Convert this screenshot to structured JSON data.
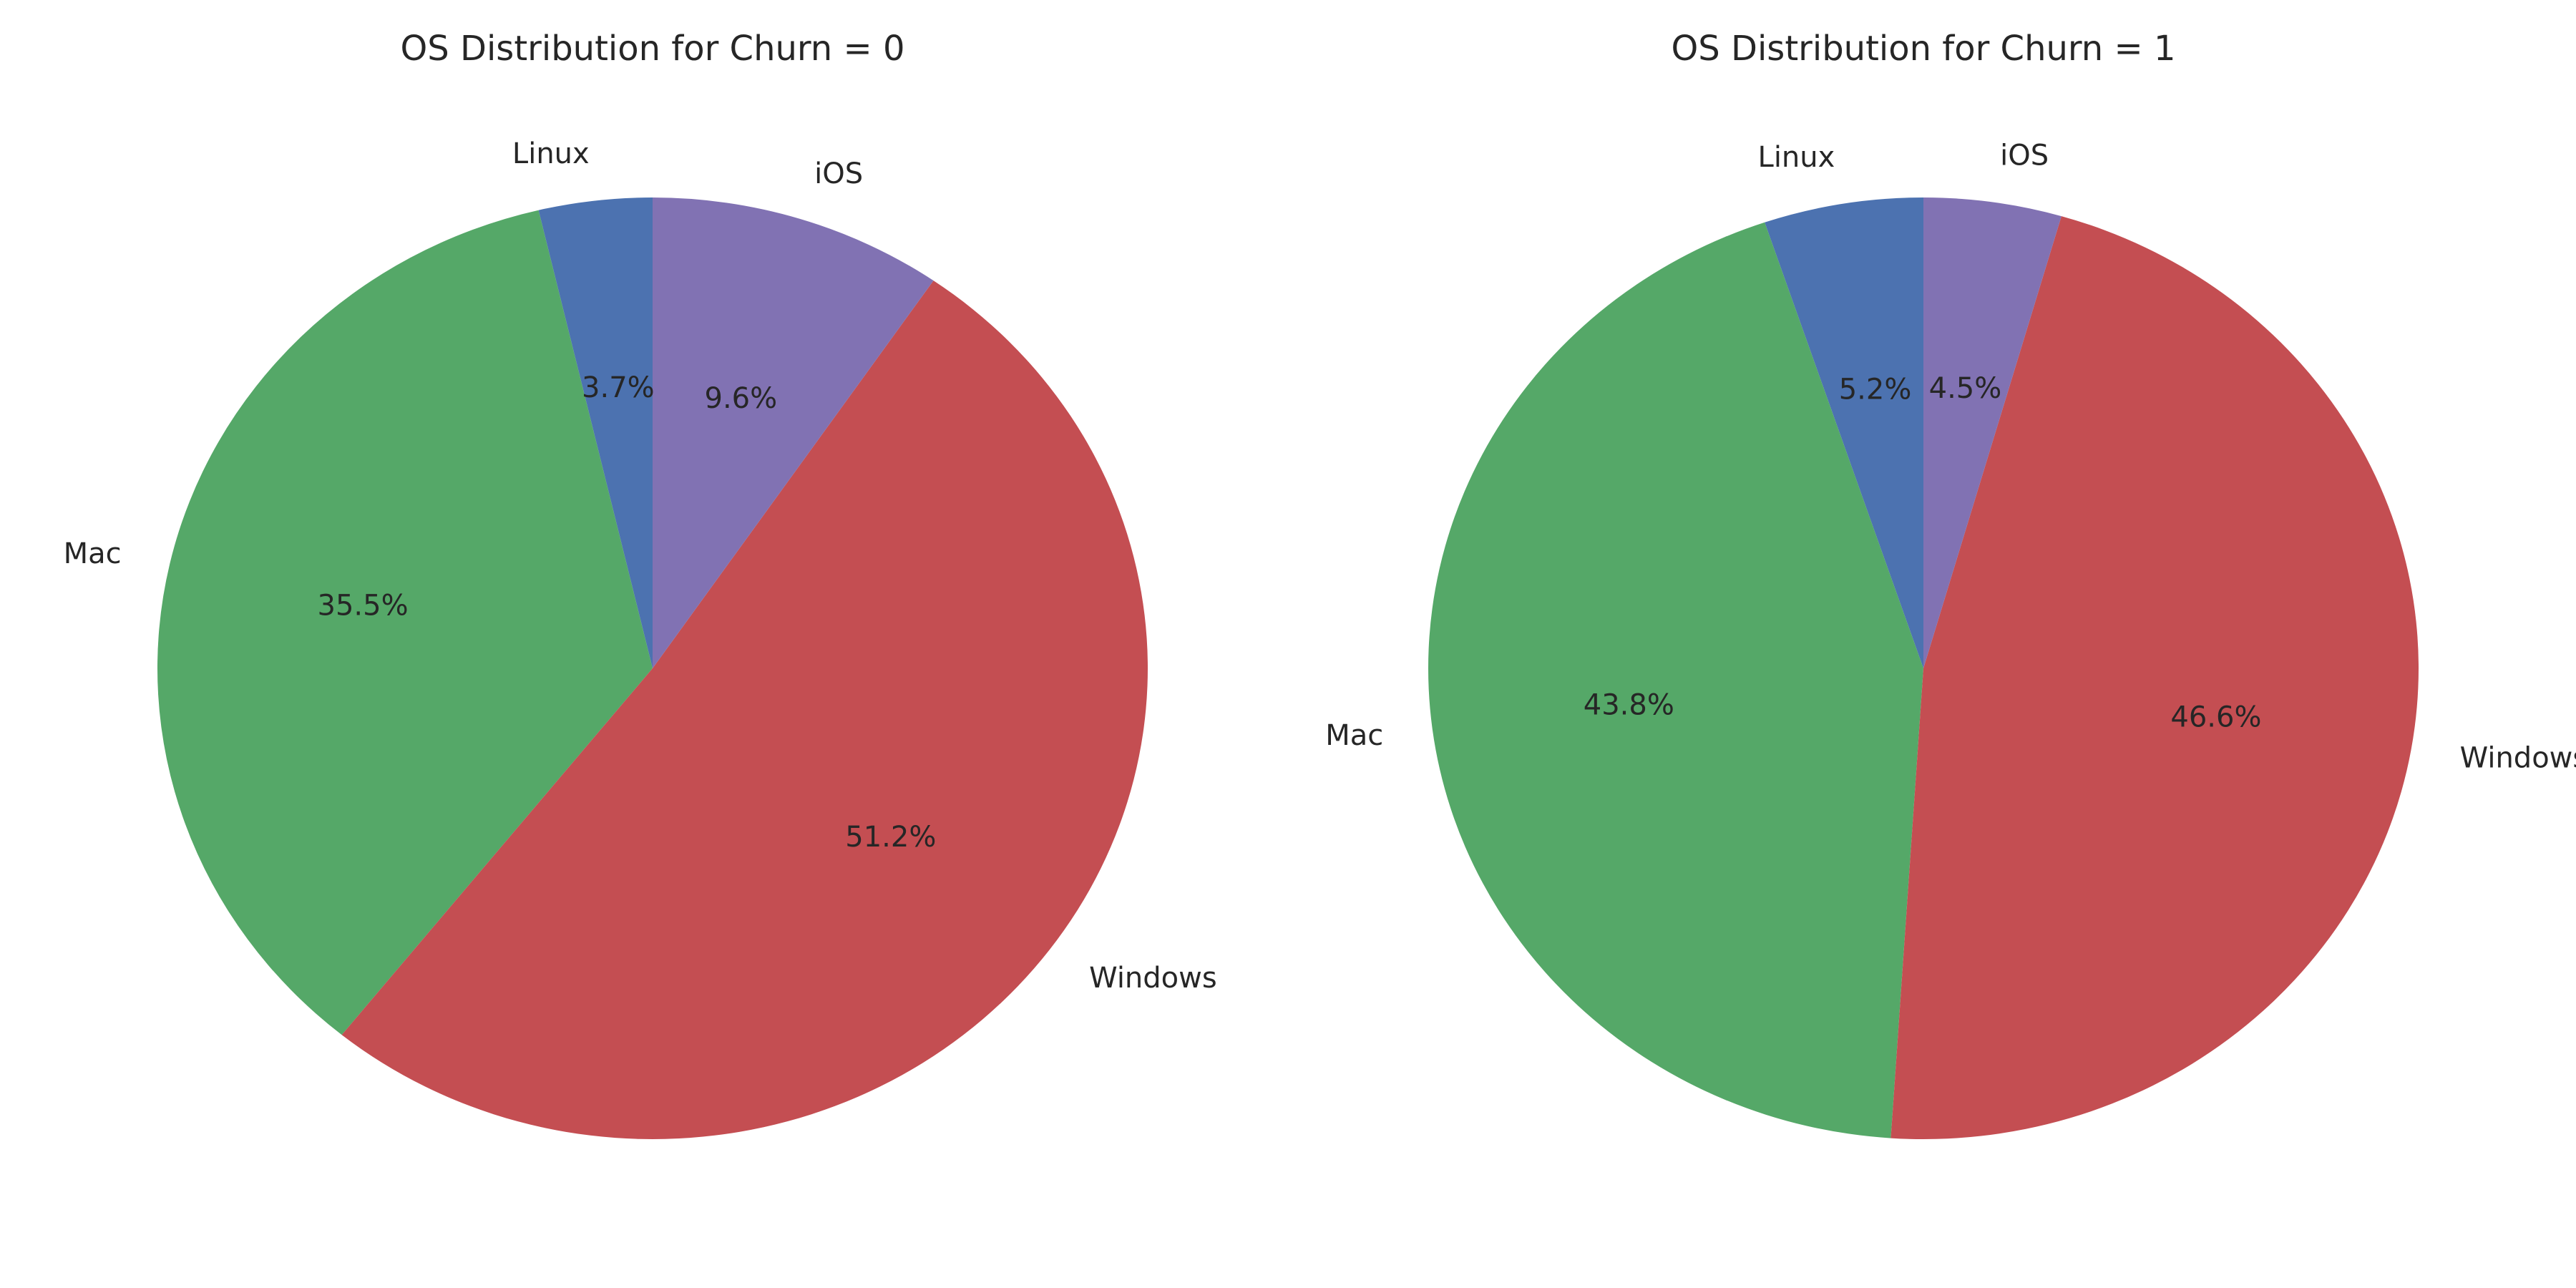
{
  "chart_data": [
    {
      "type": "pie",
      "title": "OS Distribution for Churn = 0",
      "categories": [
        "Linux",
        "Mac",
        "Windows",
        "iOS"
      ],
      "values": [
        3.7,
        35.5,
        51.2,
        9.6
      ],
      "percent_labels": [
        "3.7%",
        "35.5%",
        "51.2%",
        "9.6%"
      ],
      "colors": [
        "#4c72b0",
        "#55a868",
        "#c44e52",
        "#8172b3"
      ],
      "start_angle_deg": 90,
      "direction": "counterclockwise",
      "legend": "none"
    },
    {
      "type": "pie",
      "title": "OS Distribution for Churn = 1",
      "categories": [
        "Linux",
        "Mac",
        "Windows",
        "iOS"
      ],
      "values": [
        5.2,
        43.8,
        46.6,
        4.5
      ],
      "percent_labels": [
        "5.2%",
        "43.8%",
        "46.6%",
        "4.5%"
      ],
      "colors": [
        "#4c72b0",
        "#55a868",
        "#c44e52",
        "#8172b3"
      ],
      "start_angle_deg": 90,
      "direction": "counterclockwise",
      "legend": "none"
    }
  ]
}
